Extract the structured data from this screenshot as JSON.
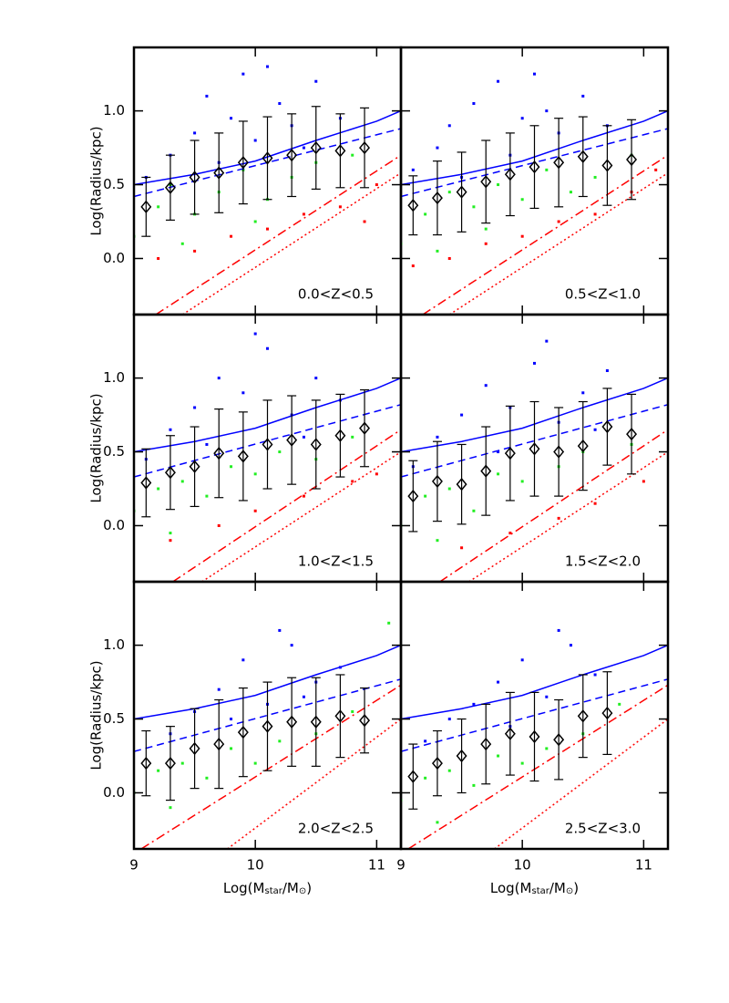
{
  "chart_data": [
    {
      "type": "scatter",
      "title": "0.0<Z<0.5",
      "ylabel": "Log(Radius/kpc)",
      "xlim": [
        9,
        11.2
      ],
      "ylim": [
        -0.38,
        1.43
      ],
      "xticks": [
        9,
        10,
        11
      ],
      "yticks": [
        {
          "value": 0,
          "label": "0.0"
        },
        {
          "value": 0.5,
          "label": "0.5"
        },
        {
          "value": 1,
          "label": "1.0"
        }
      ],
      "series": [
        {
          "color": "#0000ff",
          "x": [
            9.1,
            9.3,
            9.5,
            9.6,
            9.8,
            9.9,
            10.0,
            10.2,
            10.3,
            10.5,
            10.7,
            9.7,
            10.1,
            10.4
          ],
          "values": [
            0.55,
            0.7,
            0.85,
            1.1,
            0.95,
            1.25,
            0.8,
            1.05,
            0.9,
            1.2,
            0.95,
            0.65,
            1.3,
            0.75
          ]
        },
        {
          "color": "#22ee22",
          "x": [
            9.0,
            9.2,
            9.3,
            9.5,
            9.7,
            9.9,
            10.1,
            10.3,
            10.5,
            10.8,
            9.4,
            10.0
          ],
          "values": [
            0.15,
            0.35,
            0.5,
            0.3,
            0.45,
            0.6,
            0.4,
            0.55,
            0.65,
            0.7,
            0.1,
            0.25
          ]
        },
        {
          "color": "#ff0000",
          "x": [
            9.2,
            9.5,
            9.8,
            10.1,
            10.4,
            10.7,
            11.0,
            10.9
          ],
          "values": [
            0.0,
            0.05,
            0.15,
            0.2,
            0.3,
            0.35,
            0.5,
            0.25
          ]
        }
      ],
      "lines": [
        {
          "color": "#0000ff",
          "style": "solid",
          "x": [
            9,
            9.5,
            10,
            10.5,
            11,
            11.2
          ],
          "values": [
            0.5,
            0.57,
            0.66,
            0.8,
            0.93,
            1.0
          ]
        },
        {
          "color": "#0000ff",
          "style": "dashed",
          "x": [
            9,
            11.2
          ],
          "values": [
            0.42,
            0.88
          ]
        },
        {
          "color": "#ff0000",
          "style": "dashdot",
          "x": [
            9.18,
            11.2
          ],
          "values": [
            -0.38,
            0.7
          ]
        },
        {
          "color": "#ff0000",
          "style": "dotted",
          "x": [
            9.4,
            11.2
          ],
          "values": [
            -0.38,
            0.58
          ]
        }
      ],
      "medians": {
        "x": [
          9.1,
          9.3,
          9.5,
          9.7,
          9.9,
          10.1,
          10.3,
          10.5,
          10.7,
          10.9
        ],
        "values": [
          0.35,
          0.48,
          0.55,
          0.58,
          0.65,
          0.68,
          0.7,
          0.75,
          0.73,
          0.75
        ],
        "errors": [
          0.2,
          0.22,
          0.25,
          0.27,
          0.28,
          0.28,
          0.28,
          0.28,
          0.25,
          0.27
        ]
      }
    },
    {
      "type": "scatter",
      "title": "0.5<Z<1.0",
      "xlim": [
        9,
        11.2
      ],
      "ylim": [
        -0.38,
        1.43
      ],
      "xticks": [
        9,
        10,
        11
      ],
      "yticks": [
        0,
        0.5,
        1
      ],
      "series": [
        {
          "color": "#0000ff",
          "x": [
            9.1,
            9.3,
            9.4,
            9.6,
            9.8,
            10.0,
            10.1,
            10.3,
            10.5,
            10.7,
            9.9,
            10.2,
            9.5
          ],
          "values": [
            0.6,
            0.75,
            0.9,
            1.05,
            1.2,
            0.95,
            1.25,
            0.85,
            1.1,
            0.9,
            0.7,
            1.0,
            0.55
          ]
        },
        {
          "color": "#22ee22",
          "x": [
            9.0,
            9.2,
            9.4,
            9.6,
            9.8,
            10.0,
            10.2,
            10.4,
            10.6,
            10.9,
            9.3,
            9.7
          ],
          "values": [
            0.1,
            0.3,
            0.45,
            0.35,
            0.5,
            0.4,
            0.6,
            0.45,
            0.55,
            0.7,
            0.05,
            0.2
          ]
        },
        {
          "color": "#ff0000",
          "x": [
            9.1,
            9.4,
            9.7,
            10.0,
            10.3,
            10.6,
            10.9,
            11.1
          ],
          "values": [
            -0.05,
            0.0,
            0.1,
            0.15,
            0.25,
            0.3,
            0.45,
            0.6
          ]
        }
      ],
      "lines": [
        {
          "color": "#0000ff",
          "style": "solid",
          "x": [
            9,
            9.5,
            10,
            10.5,
            11,
            11.2
          ],
          "values": [
            0.5,
            0.57,
            0.66,
            0.8,
            0.93,
            1.0
          ]
        },
        {
          "color": "#0000ff",
          "style": "dashed",
          "x": [
            9,
            11.2
          ],
          "values": [
            0.42,
            0.88
          ]
        },
        {
          "color": "#ff0000",
          "style": "dashdot",
          "x": [
            9.18,
            11.2
          ],
          "values": [
            -0.38,
            0.7
          ]
        },
        {
          "color": "#ff0000",
          "style": "dotted",
          "x": [
            9.4,
            11.2
          ],
          "values": [
            -0.38,
            0.58
          ]
        }
      ],
      "medians": {
        "x": [
          9.1,
          9.3,
          9.5,
          9.7,
          9.9,
          10.1,
          10.3,
          10.5,
          10.7,
          10.9
        ],
        "values": [
          0.36,
          0.41,
          0.45,
          0.52,
          0.57,
          0.62,
          0.65,
          0.69,
          0.63,
          0.67
        ],
        "errors": [
          0.2,
          0.25,
          0.27,
          0.28,
          0.28,
          0.28,
          0.3,
          0.27,
          0.27,
          0.27
        ]
      }
    },
    {
      "type": "scatter",
      "title": "1.0<Z<1.5",
      "ylabel": "Log(Radius/kpc)",
      "xlim": [
        9,
        11.2
      ],
      "ylim": [
        -0.38,
        1.43
      ],
      "xticks": [
        9,
        10,
        11
      ],
      "yticks": [
        {
          "value": 0,
          "label": "0.0"
        },
        {
          "value": 0.5,
          "label": "0.5"
        },
        {
          "value": 1,
          "label": "1.0"
        }
      ],
      "series": [
        {
          "color": "#0000ff",
          "x": [
            9.1,
            9.3,
            9.5,
            9.7,
            9.9,
            10.1,
            10.3,
            10.5,
            10.7,
            9.6,
            10.0,
            10.4
          ],
          "values": [
            0.45,
            0.65,
            0.8,
            1.0,
            0.9,
            1.2,
            0.75,
            1.0,
            0.85,
            0.55,
            1.3,
            0.6
          ]
        },
        {
          "color": "#22ee22",
          "x": [
            9.0,
            9.2,
            9.4,
            9.6,
            9.8,
            10.0,
            10.2,
            10.5,
            10.8,
            9.3
          ],
          "values": [
            0.1,
            0.25,
            0.3,
            0.2,
            0.4,
            0.35,
            0.5,
            0.45,
            0.6,
            -0.05
          ]
        },
        {
          "color": "#ff0000",
          "x": [
            9.3,
            9.7,
            10.0,
            10.4,
            10.8,
            11.0
          ],
          "values": [
            -0.1,
            0.0,
            0.1,
            0.2,
            0.3,
            0.35
          ]
        }
      ],
      "lines": [
        {
          "color": "#0000ff",
          "style": "solid",
          "x": [
            9,
            9.5,
            10,
            10.5,
            11,
            11.2
          ],
          "values": [
            0.5,
            0.57,
            0.66,
            0.8,
            0.93,
            1.0
          ]
        },
        {
          "color": "#0000ff",
          "style": "dashed",
          "x": [
            9,
            11.2
          ],
          "values": [
            0.33,
            0.82
          ]
        },
        {
          "color": "#ff0000",
          "style": "dashdot",
          "x": [
            9.32,
            11.2
          ],
          "values": [
            -0.38,
            0.65
          ]
        },
        {
          "color": "#ff0000",
          "style": "dotted",
          "x": [
            9.56,
            11.2
          ],
          "values": [
            -0.38,
            0.5
          ]
        }
      ],
      "medians": {
        "x": [
          9.1,
          9.3,
          9.5,
          9.7,
          9.9,
          10.1,
          10.3,
          10.5,
          10.7,
          10.9
        ],
        "values": [
          0.29,
          0.36,
          0.4,
          0.49,
          0.47,
          0.55,
          0.58,
          0.55,
          0.61,
          0.66
        ],
        "errors": [
          0.23,
          0.25,
          0.27,
          0.3,
          0.3,
          0.3,
          0.3,
          0.3,
          0.28,
          0.26
        ]
      }
    },
    {
      "type": "scatter",
      "title": "1.5<Z<2.0",
      "xlim": [
        9,
        11.2
      ],
      "ylim": [
        -0.38,
        1.43
      ],
      "xticks": [
        9,
        10,
        11
      ],
      "yticks": [
        0,
        0.5,
        1
      ],
      "series": [
        {
          "color": "#0000ff",
          "x": [
            9.1,
            9.3,
            9.5,
            9.7,
            9.9,
            10.1,
            10.3,
            10.5,
            10.7,
            9.8,
            10.2,
            10.6
          ],
          "values": [
            0.4,
            0.6,
            0.75,
            0.95,
            0.8,
            1.1,
            0.7,
            0.9,
            1.05,
            0.5,
            1.25,
            0.65
          ]
        },
        {
          "color": "#22ee22",
          "x": [
            9.0,
            9.2,
            9.4,
            9.6,
            9.8,
            10.0,
            10.3,
            10.5,
            10.9,
            9.3
          ],
          "values": [
            0.0,
            0.2,
            0.25,
            0.1,
            0.35,
            0.3,
            0.4,
            0.5,
            0.55,
            -0.1
          ]
        },
        {
          "color": "#ff0000",
          "x": [
            9.5,
            9.9,
            10.3,
            10.6,
            11.0
          ],
          "values": [
            -0.15,
            -0.05,
            0.05,
            0.15,
            0.3
          ]
        }
      ],
      "lines": [
        {
          "color": "#0000ff",
          "style": "solid",
          "x": [
            9,
            9.5,
            10,
            10.5,
            11,
            11.2
          ],
          "values": [
            0.5,
            0.57,
            0.66,
            0.8,
            0.93,
            1.0
          ]
        },
        {
          "color": "#0000ff",
          "style": "dashed",
          "x": [
            9,
            11.2
          ],
          "values": [
            0.33,
            0.82
          ]
        },
        {
          "color": "#ff0000",
          "style": "dashdot",
          "x": [
            9.32,
            11.2
          ],
          "values": [
            -0.38,
            0.65
          ]
        },
        {
          "color": "#ff0000",
          "style": "dotted",
          "x": [
            9.56,
            11.2
          ],
          "values": [
            -0.38,
            0.5
          ]
        }
      ],
      "medians": {
        "x": [
          9.1,
          9.3,
          9.5,
          9.7,
          9.9,
          10.1,
          10.3,
          10.5,
          10.7,
          10.9
        ],
        "values": [
          0.2,
          0.3,
          0.28,
          0.37,
          0.49,
          0.52,
          0.5,
          0.54,
          0.67,
          0.62
        ],
        "errors": [
          0.24,
          0.27,
          0.27,
          0.3,
          0.32,
          0.32,
          0.3,
          0.3,
          0.26,
          0.27
        ]
      }
    },
    {
      "type": "scatter",
      "title": "2.0<Z<2.5",
      "ylabel": "Log(Radius/kpc)",
      "xlabel": [
        "Log(M",
        "star",
        "/M",
        "⊙",
        ")"
      ],
      "xtick_labels": true,
      "xlim": [
        9,
        11.2
      ],
      "ylim": [
        -0.38,
        1.43
      ],
      "xticks": [
        9,
        10,
        11
      ],
      "yticks": [
        {
          "value": 0,
          "label": "0.0"
        },
        {
          "value": 0.5,
          "label": "0.5"
        },
        {
          "value": 1,
          "label": "1.0"
        }
      ],
      "series": [
        {
          "color": "#0000ff",
          "x": [
            9.3,
            9.5,
            9.7,
            9.9,
            10.1,
            10.3,
            10.5,
            10.7,
            9.8,
            10.2,
            10.4
          ],
          "values": [
            0.4,
            0.55,
            0.7,
            0.9,
            0.6,
            1.0,
            0.75,
            0.85,
            0.5,
            1.1,
            0.65
          ]
        },
        {
          "color": "#22ee22",
          "x": [
            9.0,
            9.2,
            9.4,
            9.6,
            9.8,
            10.0,
            10.2,
            10.5,
            10.8,
            9.3,
            11.1
          ],
          "values": [
            0.0,
            0.15,
            0.2,
            0.1,
            0.3,
            0.2,
            0.35,
            0.4,
            0.55,
            -0.1,
            1.15
          ]
        }
      ],
      "lines": [
        {
          "color": "#0000ff",
          "style": "solid",
          "x": [
            9,
            9.5,
            10,
            10.5,
            11,
            11.2
          ],
          "values": [
            0.5,
            0.57,
            0.66,
            0.8,
            0.93,
            1.0
          ]
        },
        {
          "color": "#0000ff",
          "style": "dashed",
          "x": [
            9,
            11.2
          ],
          "values": [
            0.28,
            0.77
          ]
        },
        {
          "color": "#ff0000",
          "style": "dashdot",
          "x": [
            9.06,
            11.2
          ],
          "values": [
            -0.38,
            0.73
          ]
        },
        {
          "color": "#ff0000",
          "style": "dotted",
          "x": [
            9.77,
            11.2
          ],
          "values": [
            -0.38,
            0.5
          ]
        }
      ],
      "medians": {
        "x": [
          9.1,
          9.3,
          9.5,
          9.7,
          9.9,
          10.1,
          10.3,
          10.5,
          10.7,
          10.9
        ],
        "values": [
          0.2,
          0.2,
          0.3,
          0.33,
          0.41,
          0.45,
          0.48,
          0.48,
          0.52,
          0.49
        ],
        "errors": [
          0.22,
          0.25,
          0.27,
          0.3,
          0.3,
          0.3,
          0.3,
          0.3,
          0.28,
          0.22
        ]
      }
    },
    {
      "type": "scatter",
      "title": "2.5<Z<3.0",
      "xlabel": [
        "Log(M",
        "star",
        "/M",
        "⊙",
        ")"
      ],
      "xtick_labels": true,
      "xlim": [
        9,
        11.2
      ],
      "ylim": [
        -0.38,
        1.43
      ],
      "xticks": [
        9,
        10,
        11
      ],
      "yticks": [
        0,
        0.5,
        1
      ],
      "series": [
        {
          "color": "#0000ff",
          "x": [
            9.2,
            9.4,
            9.6,
            9.8,
            10.0,
            10.2,
            10.4,
            10.6,
            9.9,
            10.3
          ],
          "values": [
            0.35,
            0.5,
            0.6,
            0.75,
            0.9,
            0.65,
            1.0,
            0.8,
            0.45,
            1.1
          ]
        },
        {
          "color": "#22ee22",
          "x": [
            9.0,
            9.2,
            9.4,
            9.6,
            9.8,
            10.0,
            10.2,
            10.5,
            9.3,
            10.8
          ],
          "values": [
            -0.05,
            0.1,
            0.15,
            0.05,
            0.25,
            0.2,
            0.3,
            0.4,
            -0.2,
            0.6
          ]
        }
      ],
      "lines": [
        {
          "color": "#0000ff",
          "style": "solid",
          "x": [
            9,
            9.5,
            10,
            10.5,
            11,
            11.2
          ],
          "values": [
            0.5,
            0.57,
            0.66,
            0.8,
            0.93,
            1.0
          ]
        },
        {
          "color": "#0000ff",
          "style": "dashed",
          "x": [
            9,
            11.2
          ],
          "values": [
            0.28,
            0.77
          ]
        },
        {
          "color": "#ff0000",
          "style": "dashdot",
          "x": [
            9.06,
            11.2
          ],
          "values": [
            -0.38,
            0.73
          ]
        },
        {
          "color": "#ff0000",
          "style": "dotted",
          "x": [
            9.77,
            11.2
          ],
          "values": [
            -0.38,
            0.5
          ]
        }
      ],
      "medians": {
        "x": [
          9.1,
          9.3,
          9.5,
          9.7,
          9.9,
          10.1,
          10.3,
          10.5,
          10.7
        ],
        "values": [
          0.11,
          0.2,
          0.25,
          0.33,
          0.4,
          0.38,
          0.36,
          0.52,
          0.54
        ],
        "errors": [
          0.22,
          0.22,
          0.25,
          0.27,
          0.28,
          0.3,
          0.27,
          0.28,
          0.28
        ]
      }
    }
  ]
}
